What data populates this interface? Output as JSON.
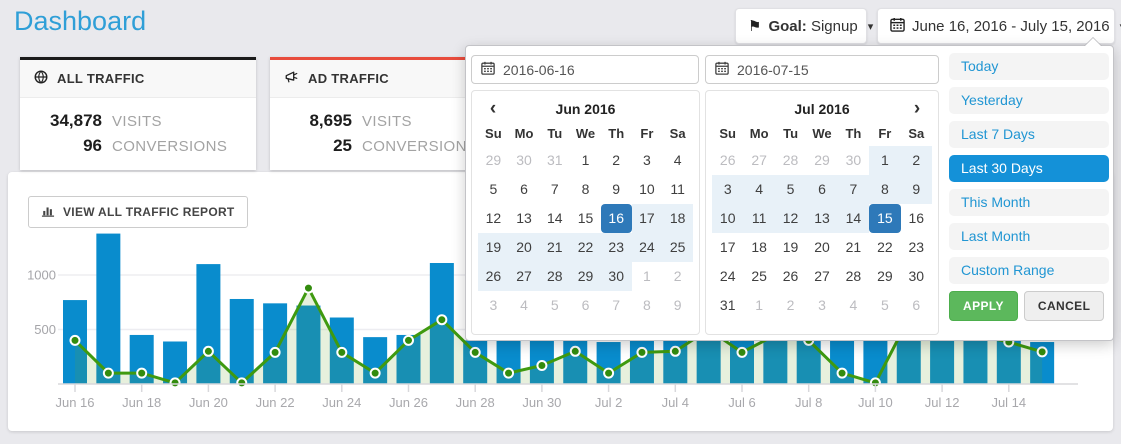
{
  "page": {
    "title": "Dashboard"
  },
  "icons": {
    "caret_down": "▾",
    "flag": "⚑",
    "chevron_left": "‹",
    "chevron_right": "›"
  },
  "header": {
    "goal_button": {
      "prefix": "Goal:",
      "value": "Signup"
    },
    "date_range_button": {
      "label": "June 16, 2016 - July 15, 2016"
    }
  },
  "cards": [
    {
      "title": "ALL TRAFFIC",
      "accent": "#1b1b1b",
      "icon": "globe-icon",
      "stats": [
        {
          "value": "34,878",
          "label": "VISITS"
        },
        {
          "value": "96",
          "label": "CONVERSIONS"
        }
      ]
    },
    {
      "title": "AD TRAFFIC",
      "accent": "#e84c3d",
      "icon": "megaphone-icon",
      "stats": [
        {
          "value": "8,695",
          "label": "VISITS"
        },
        {
          "value": "25",
          "label": "CONVERSIONS"
        }
      ]
    }
  ],
  "report_button": {
    "label": "VIEW ALL TRAFFIC REPORT"
  },
  "chart_data": {
    "type": "bar+line",
    "categories": [
      "Jun 16",
      "Jun 17",
      "Jun 18",
      "Jun 19",
      "Jun 20",
      "Jun 21",
      "Jun 22",
      "Jun 23",
      "Jun 24",
      "Jun 25",
      "Jun 26",
      "Jun 27",
      "Jun 28",
      "Jun 29",
      "Jun 30",
      "Jul 1",
      "Jul 2",
      "Jul 3",
      "Jul 4",
      "Jul 5",
      "Jul 6",
      "Jul 7",
      "Jul 8",
      "Jul 9",
      "Jul 10",
      "Jul 11",
      "Jul 12",
      "Jul 13",
      "Jul 14",
      "Jul 15"
    ],
    "x_tick_labels": [
      "Jun 16",
      "Jun 18",
      "Jun 20",
      "Jun 22",
      "Jun 24",
      "Jun 26",
      "Jun 28",
      "Jun 30",
      "Jul 2",
      "Jul 4",
      "Jul 6",
      "Jul 8",
      "Jul 10",
      "Jul 12",
      "Jul 14"
    ],
    "series": [
      {
        "name": "visits",
        "type": "bar",
        "color": "#098ccd",
        "values": [
          770,
          1380,
          450,
          390,
          1100,
          780,
          740,
          720,
          610,
          430,
          450,
          1110,
          400,
          600,
          650,
          600,
          385,
          600,
          550,
          700,
          620,
          560,
          640,
          580,
          620,
          700,
          650,
          600,
          560,
          385
        ]
      },
      {
        "name": "conversions",
        "type": "line",
        "color": "#3f9a10",
        "values": [
          400,
          100,
          100,
          10,
          300,
          10,
          290,
          880,
          290,
          100,
          400,
          590,
          290,
          100,
          170,
          300,
          100,
          290,
          300,
          500,
          290,
          450,
          400,
          100,
          10,
          600,
          500,
          450,
          385,
          295
        ]
      }
    ],
    "ylim": [
      0,
      1400
    ],
    "yticks": [
      500,
      1000
    ],
    "grid": true,
    "legend": "none",
    "title": ""
  },
  "datepicker": {
    "inputs": [
      {
        "value": "2016-06-16"
      },
      {
        "value": "2016-07-15"
      }
    ],
    "weekdays": [
      "Su",
      "Mo",
      "Tu",
      "We",
      "Th",
      "Fr",
      "Sa"
    ],
    "calendars": [
      {
        "title": "Jun 2016",
        "nav": "prev",
        "weeks": [
          [
            {
              "t": "29",
              "s": "m"
            },
            {
              "t": "30",
              "s": "m"
            },
            {
              "t": "31",
              "s": "m"
            },
            {
              "t": "1"
            },
            {
              "t": "2"
            },
            {
              "t": "3"
            },
            {
              "t": "4"
            }
          ],
          [
            {
              "t": "5"
            },
            {
              "t": "6"
            },
            {
              "t": "7"
            },
            {
              "t": "8"
            },
            {
              "t": "9"
            },
            {
              "t": "10"
            },
            {
              "t": "11"
            }
          ],
          [
            {
              "t": "12"
            },
            {
              "t": "13"
            },
            {
              "t": "14"
            },
            {
              "t": "15"
            },
            {
              "t": "16",
              "s": "sel"
            },
            {
              "t": "17",
              "s": "r"
            },
            {
              "t": "18",
              "s": "r"
            }
          ],
          [
            {
              "t": "19",
              "s": "r"
            },
            {
              "t": "20",
              "s": "r"
            },
            {
              "t": "21",
              "s": "r"
            },
            {
              "t": "22",
              "s": "r"
            },
            {
              "t": "23",
              "s": "r"
            },
            {
              "t": "24",
              "s": "r"
            },
            {
              "t": "25",
              "s": "r"
            }
          ],
          [
            {
              "t": "26",
              "s": "r"
            },
            {
              "t": "27",
              "s": "r"
            },
            {
              "t": "28",
              "s": "r"
            },
            {
              "t": "29",
              "s": "r"
            },
            {
              "t": "30",
              "s": "r"
            },
            {
              "t": "1",
              "s": "m"
            },
            {
              "t": "2",
              "s": "m"
            }
          ],
          [
            {
              "t": "3",
              "s": "m"
            },
            {
              "t": "4",
              "s": "m"
            },
            {
              "t": "5",
              "s": "m"
            },
            {
              "t": "6",
              "s": "m"
            },
            {
              "t": "7",
              "s": "m"
            },
            {
              "t": "8",
              "s": "m"
            },
            {
              "t": "9",
              "s": "m"
            }
          ]
        ]
      },
      {
        "title": "Jul 2016",
        "nav": "next",
        "weeks": [
          [
            {
              "t": "26",
              "s": "m"
            },
            {
              "t": "27",
              "s": "m"
            },
            {
              "t": "28",
              "s": "m"
            },
            {
              "t": "29",
              "s": "m"
            },
            {
              "t": "30",
              "s": "m"
            },
            {
              "t": "1",
              "s": "r"
            },
            {
              "t": "2",
              "s": "r"
            }
          ],
          [
            {
              "t": "3",
              "s": "r"
            },
            {
              "t": "4",
              "s": "r"
            },
            {
              "t": "5",
              "s": "r"
            },
            {
              "t": "6",
              "s": "r"
            },
            {
              "t": "7",
              "s": "r"
            },
            {
              "t": "8",
              "s": "r"
            },
            {
              "t": "9",
              "s": "r"
            }
          ],
          [
            {
              "t": "10",
              "s": "r"
            },
            {
              "t": "11",
              "s": "r"
            },
            {
              "t": "12",
              "s": "r"
            },
            {
              "t": "13",
              "s": "r"
            },
            {
              "t": "14",
              "s": "r"
            },
            {
              "t": "15",
              "s": "sel"
            },
            {
              "t": "16"
            }
          ],
          [
            {
              "t": "17"
            },
            {
              "t": "18"
            },
            {
              "t": "19"
            },
            {
              "t": "20"
            },
            {
              "t": "21"
            },
            {
              "t": "22"
            },
            {
              "t": "23"
            }
          ],
          [
            {
              "t": "24"
            },
            {
              "t": "25"
            },
            {
              "t": "26"
            },
            {
              "t": "27"
            },
            {
              "t": "28"
            },
            {
              "t": "29"
            },
            {
              "t": "30"
            }
          ],
          [
            {
              "t": "31"
            },
            {
              "t": "1",
              "s": "m"
            },
            {
              "t": "2",
              "s": "m"
            },
            {
              "t": "3",
              "s": "m"
            },
            {
              "t": "4",
              "s": "m"
            },
            {
              "t": "5",
              "s": "m"
            },
            {
              "t": "6",
              "s": "m"
            }
          ]
        ]
      }
    ],
    "ranges": [
      {
        "label": "Today"
      },
      {
        "label": "Yesterday"
      },
      {
        "label": "Last 7 Days"
      },
      {
        "label": "Last 30 Days",
        "selected": true
      },
      {
        "label": "This Month"
      },
      {
        "label": "Last Month"
      },
      {
        "label": "Custom Range"
      }
    ],
    "apply_label": "APPLY",
    "cancel_label": "CANCEL"
  }
}
